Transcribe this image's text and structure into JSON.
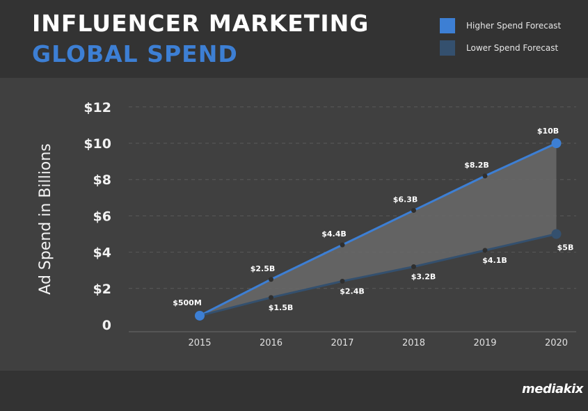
{
  "header": {
    "title_line1": "INFLUENCER MARKETING",
    "title_line2": "GLOBAL SPEND"
  },
  "legend": {
    "items": [
      {
        "label": "Higher Spend Forecast",
        "color": "#3d7fd4"
      },
      {
        "label": "Lower Spend Forecast",
        "color": "#34506e"
      }
    ]
  },
  "footer": {
    "logo_text": "mediakix"
  },
  "colors": {
    "background": "#404040",
    "band": "#333333",
    "accent": "#3d7fd4",
    "lower_series": "#34506e",
    "fill_between": "#6a6a6a"
  },
  "chart_data": {
    "type": "line",
    "ylabel": "Ad Spend in Billions",
    "ylim": [
      0,
      12
    ],
    "y_ticks": [
      {
        "value": 0,
        "label": "0"
      },
      {
        "value": 2,
        "label": "$2"
      },
      {
        "value": 4,
        "label": "$4"
      },
      {
        "value": 6,
        "label": "$6"
      },
      {
        "value": 8,
        "label": "$8"
      },
      {
        "value": 10,
        "label": "$10"
      },
      {
        "value": 12,
        "label": "$12"
      }
    ],
    "categories": [
      "2015",
      "2016",
      "2017",
      "2018",
      "2019",
      "2020"
    ],
    "grid": true,
    "fill_between_series": true,
    "series": [
      {
        "name": "Higher Spend Forecast",
        "values": [
          0.5,
          2.5,
          4.4,
          6.3,
          8.2,
          10
        ],
        "labels": [
          "$500M",
          "$2.5B",
          "$4.4B",
          "$6.3B",
          "$8.2B",
          "$10B"
        ]
      },
      {
        "name": "Lower Spend Forecast",
        "values": [
          0.5,
          1.5,
          2.4,
          3.2,
          4.1,
          5
        ],
        "labels": [
          "",
          "$1.5B",
          "$2.4B",
          "$3.2B",
          "$4.1B",
          "$5B"
        ]
      }
    ]
  }
}
